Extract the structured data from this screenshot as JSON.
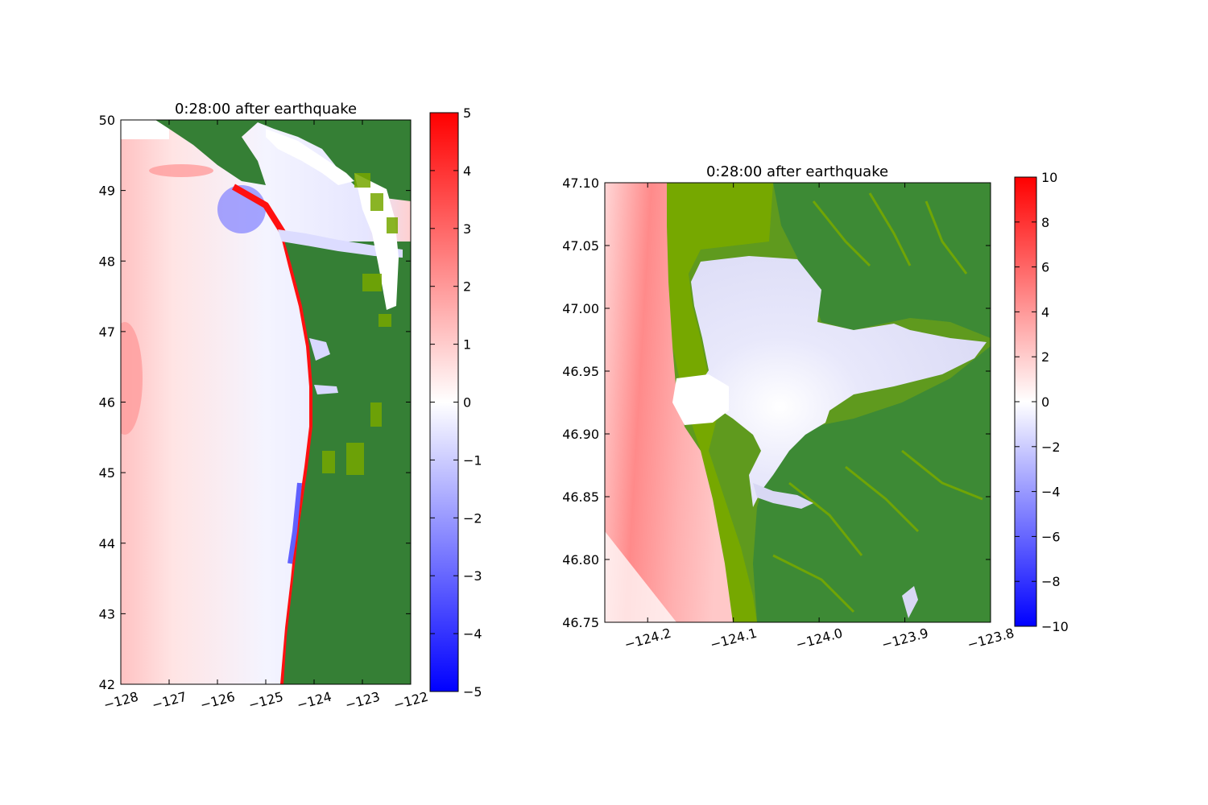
{
  "colors": {
    "ocean_pos": "#ff0000",
    "ocean_neg": "#0000ff",
    "land_dark": "#357f35",
    "land_light": "#76a800"
  },
  "chart_data": [
    {
      "type": "heatmap",
      "title": "0:28:00 after earthquake",
      "xlim": [
        -128,
        -122
      ],
      "ylim": [
        42,
        50
      ],
      "xticks": [
        -128,
        -127,
        -126,
        -125,
        -124,
        -123,
        -122
      ],
      "yticks": [
        42,
        43,
        44,
        45,
        46,
        47,
        48,
        49,
        50
      ],
      "xtick_labels": [
        "−128",
        "−127",
        "−126",
        "−125",
        "−124",
        "−123",
        "−122"
      ],
      "ytick_labels": [
        "42",
        "43",
        "44",
        "45",
        "46",
        "47",
        "48",
        "49",
        "50"
      ],
      "colorbar": {
        "range": [
          -5,
          5
        ],
        "ticks": [
          5,
          4,
          3,
          2,
          1,
          0,
          -1,
          -2,
          -3,
          -4,
          -5
        ],
        "tick_labels": [
          "5",
          "4",
          "3",
          "2",
          "1",
          "0",
          "−1",
          "−2",
          "−3",
          "−4",
          "−5"
        ]
      },
      "grid": false
    },
    {
      "type": "heatmap",
      "title": "0:28:00 after earthquake",
      "xlim": [
        -124.25,
        -123.8
      ],
      "ylim": [
        46.75,
        47.1
      ],
      "xticks": [
        -124.2,
        -124.1,
        -124.0,
        -123.9,
        -123.8
      ],
      "yticks": [
        46.75,
        46.8,
        46.85,
        46.9,
        46.95,
        47.0,
        47.05,
        47.1
      ],
      "xtick_labels": [
        "−124.2",
        "−124.1",
        "−124.0",
        "−123.9",
        "−123.8"
      ],
      "ytick_labels": [
        "46.75",
        "46.80",
        "46.85",
        "46.90",
        "46.95",
        "47.00",
        "47.05",
        "47.10"
      ],
      "colorbar": {
        "range": [
          -10,
          10
        ],
        "ticks": [
          10,
          8,
          6,
          4,
          2,
          0,
          -2,
          -4,
          -6,
          -8,
          -10
        ],
        "tick_labels": [
          "10",
          "8",
          "6",
          "4",
          "2",
          "0",
          "−2",
          "−4",
          "−6",
          "−8",
          "−10"
        ]
      },
      "grid": false
    }
  ]
}
